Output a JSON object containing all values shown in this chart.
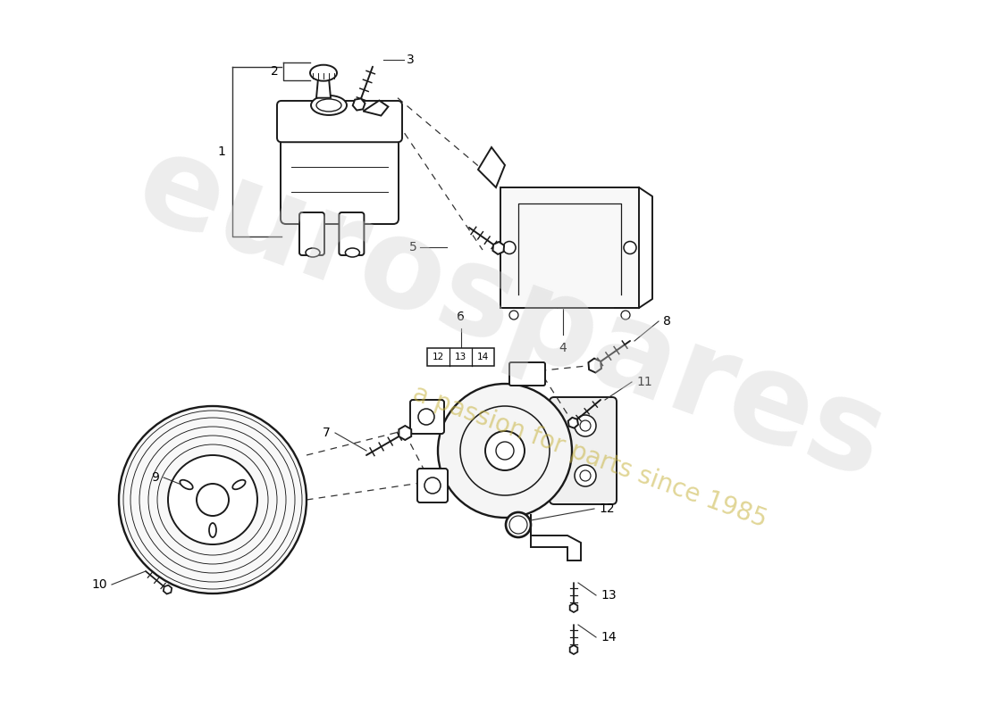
{
  "background_color": "#ffffff",
  "line_color": "#1a1a1a",
  "label_color": "#000000",
  "watermark_color": "#cccccc",
  "watermark_text": "eurospares",
  "watermark_sub": "a passion for parts since 1985",
  "watermark_sub_color": "#c8b840",
  "fig_width": 11.0,
  "fig_height": 8.0,
  "dpi": 100
}
